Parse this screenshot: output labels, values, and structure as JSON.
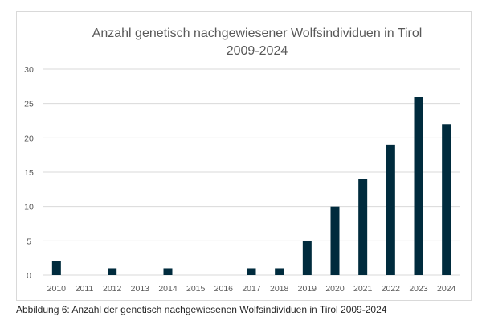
{
  "chart_data": {
    "type": "bar",
    "title": "Anzahl genetisch nachgewiesener Wolfsindividuen in Tirol",
    "subtitle": "2009-2024",
    "categories": [
      "2010",
      "2011",
      "2012",
      "2013",
      "2014",
      "2015",
      "2016",
      "2017",
      "2018",
      "2019",
      "2020",
      "2021",
      "2022",
      "2023",
      "2024"
    ],
    "values": [
      2,
      0,
      1,
      0,
      1,
      0,
      0,
      1,
      1,
      5,
      10,
      14,
      19,
      26,
      22
    ],
    "xlabel": "",
    "ylabel": "",
    "ylim": [
      0,
      30
    ],
    "yticks": [
      0,
      5,
      10,
      15,
      20,
      25,
      30
    ],
    "grid": true,
    "legend": "none",
    "bar_color": "#002b3d",
    "grid_color": "#d9d9d9"
  },
  "caption": "Abbildung 6: Anzahl der genetisch nachgewiesenen Wolfsindividuen in Tirol 2009-2024"
}
